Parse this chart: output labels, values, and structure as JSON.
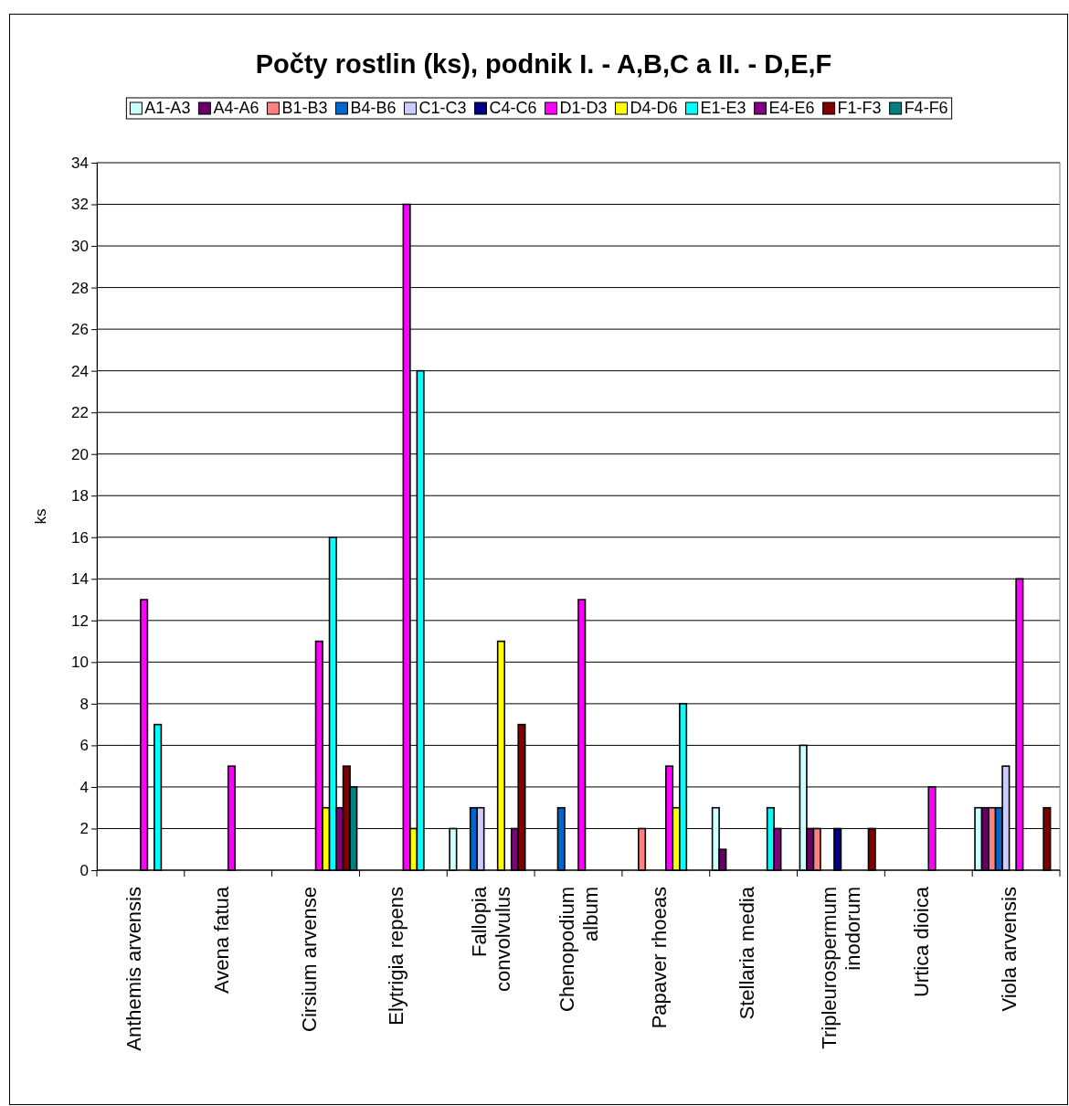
{
  "chart_data": {
    "type": "bar",
    "title": "Počty rostlin (ks), podnik I. - A,B,C a II. - D,E,F",
    "ylabel": "ks",
    "categories": [
      "Anthemis arvensis",
      "Avena fatua",
      "Cirsium arvense",
      "Elytrigia repens",
      "Fallopia convolvulus",
      "Chenopodium album",
      "Papaver rhoeas",
      "Stellaria media",
      "Tripleurospermum inodorum",
      "Urtica dioica",
      "Viola arvensis"
    ],
    "series": [
      {
        "name": "A1-A3",
        "color": "#ccffff",
        "values": [
          null,
          null,
          null,
          null,
          2,
          null,
          null,
          3,
          6,
          null,
          3
        ]
      },
      {
        "name": "A4-A6",
        "color": "#660066",
        "values": [
          null,
          null,
          null,
          null,
          null,
          null,
          null,
          1,
          2,
          null,
          3
        ]
      },
      {
        "name": "B1-B3",
        "color": "#ff8080",
        "values": [
          null,
          null,
          null,
          null,
          null,
          null,
          2,
          null,
          2,
          null,
          3
        ]
      },
      {
        "name": "B4-B6",
        "color": "#0066cc",
        "values": [
          null,
          null,
          null,
          null,
          3,
          3,
          null,
          null,
          null,
          null,
          3
        ]
      },
      {
        "name": "C1-C3",
        "color": "#ccccff",
        "values": [
          null,
          null,
          null,
          null,
          3,
          null,
          null,
          null,
          null,
          null,
          5
        ]
      },
      {
        "name": "C4-C6",
        "color": "#000080",
        "values": [
          null,
          null,
          null,
          null,
          null,
          null,
          null,
          null,
          2,
          null,
          null
        ]
      },
      {
        "name": "D1-D3",
        "color": "#ff00ff",
        "values": [
          13,
          5,
          11,
          32,
          null,
          13,
          5,
          null,
          null,
          4,
          14
        ]
      },
      {
        "name": "D4-D6",
        "color": "#ffff00",
        "values": [
          null,
          null,
          3,
          2,
          11,
          null,
          3,
          null,
          null,
          null,
          null
        ]
      },
      {
        "name": "E1-E3",
        "color": "#00ffff",
        "values": [
          7,
          null,
          16,
          24,
          null,
          null,
          8,
          3,
          null,
          null,
          null
        ]
      },
      {
        "name": "E4-E6",
        "color": "#800080",
        "values": [
          null,
          null,
          3,
          null,
          2,
          null,
          null,
          2,
          null,
          null,
          null
        ]
      },
      {
        "name": "F1-F3",
        "color": "#800000",
        "values": [
          null,
          null,
          5,
          null,
          7,
          null,
          null,
          null,
          2,
          null,
          3
        ]
      },
      {
        "name": "F4-F6",
        "color": "#008080",
        "values": [
          null,
          null,
          4,
          null,
          null,
          null,
          null,
          null,
          null,
          null,
          null
        ]
      }
    ],
    "ylim": [
      0,
      34
    ],
    "yticks": [
      0,
      2,
      4,
      6,
      8,
      10,
      12,
      14,
      16,
      18,
      20,
      22,
      24,
      26,
      28,
      30,
      32,
      34
    ],
    "grid": "y",
    "legend": "top"
  }
}
